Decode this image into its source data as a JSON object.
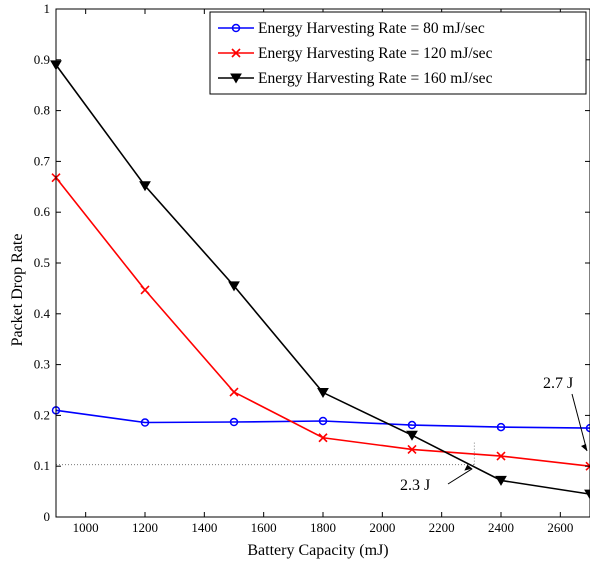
{
  "chart_data": {
    "type": "line",
    "title": "",
    "xlabel": "Battery Capacity (mJ)",
    "ylabel": "Packet Drop Rate",
    "xlim": [
      900,
      2700
    ],
    "ylim": [
      0,
      1
    ],
    "xticks": [
      1000,
      1200,
      1400,
      1600,
      1800,
      2000,
      2200,
      2400,
      2600
    ],
    "yticks": [
      0,
      0.1,
      0.2,
      0.3,
      0.4,
      0.5,
      0.6,
      0.7,
      0.8,
      0.9,
      1
    ],
    "x": [
      900,
      1200,
      1500,
      1800,
      2100,
      2400,
      2700
    ],
    "grid": false,
    "legend_position": "top-right",
    "series": [
      {
        "name": "Energy Harvesting Rate = 80 mJ/sec",
        "color": "#0000ff",
        "marker": "circle",
        "values": [
          0.21,
          0.186,
          0.187,
          0.189,
          0.181,
          0.177,
          0.175
        ]
      },
      {
        "name": "Energy Harvesting Rate = 120 mJ/sec",
        "color": "#ff0000",
        "marker": "x",
        "values": [
          0.668,
          0.447,
          0.246,
          0.156,
          0.133,
          0.12,
          0.1
        ]
      },
      {
        "name": "Energy Harvesting Rate = 160 mJ/sec",
        "color": "#000000",
        "marker": "triangle-down",
        "values": [
          0.89,
          0.652,
          0.455,
          0.245,
          0.161,
          0.072,
          0.045
        ]
      }
    ],
    "annotations": [
      {
        "text": "2.3 J",
        "x": 2310,
        "y": 0.103,
        "reference_lines": true
      },
      {
        "text": "2.7 J",
        "x": 2700,
        "y": 0.1,
        "reference_lines": false
      }
    ]
  }
}
